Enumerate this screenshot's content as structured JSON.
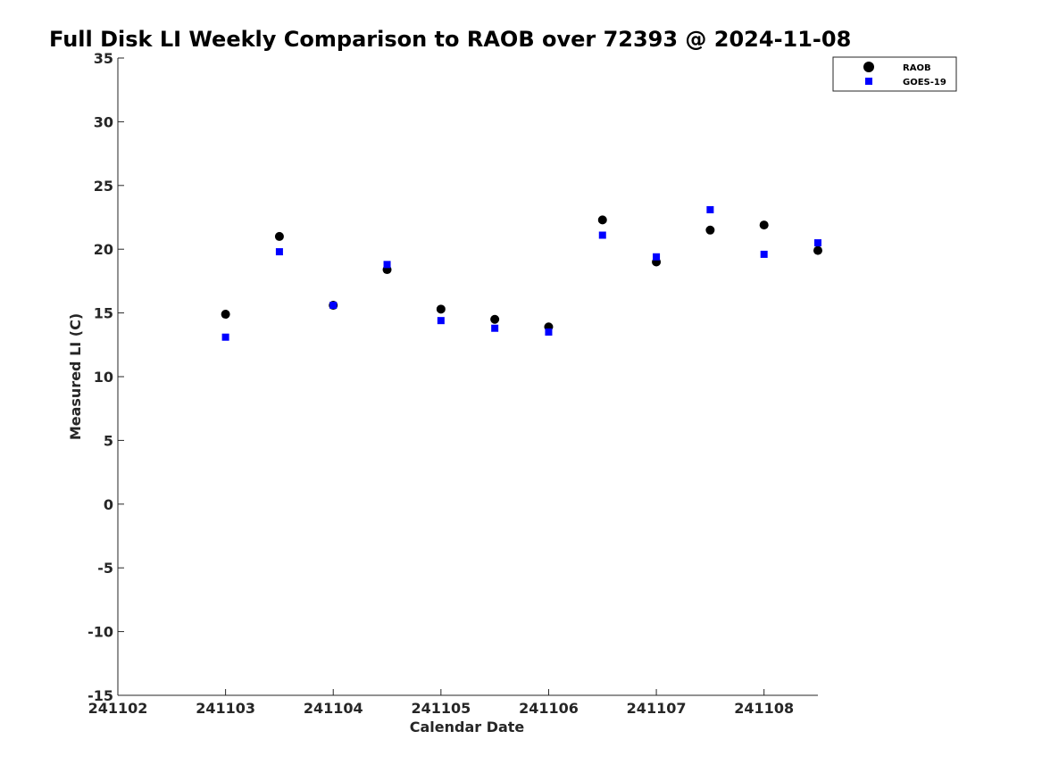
{
  "chart_data": {
    "type": "scatter",
    "title": "Full Disk LI Weekly Comparison to RAOB over 72393 @ 2024-11-08",
    "xlabel": "Calendar Date",
    "ylabel": "Measured LI (C)",
    "xlim": [
      241102,
      241108.5
    ],
    "ylim": [
      -15,
      35
    ],
    "x_ticks": [
      241102,
      241103,
      241104,
      241105,
      241106,
      241107,
      241108
    ],
    "x_tick_labels": [
      "241102",
      "241103",
      "241104",
      "241105",
      "241106",
      "241107",
      "241108"
    ],
    "y_ticks": [
      -15,
      -10,
      -5,
      0,
      5,
      10,
      15,
      20,
      25,
      30,
      35
    ],
    "y_tick_labels": [
      "-15",
      "-10",
      "-5",
      "0",
      "5",
      "10",
      "15",
      "20",
      "25",
      "30",
      "35"
    ],
    "grid": false,
    "legend_position": "top-right",
    "series": [
      {
        "name": "RAOB",
        "marker": "circle",
        "color": "#000000",
        "x": [
          241103,
          241103.5,
          241104,
          241104.5,
          241105,
          241105.5,
          241106,
          241106.5,
          241107,
          241107.5,
          241108,
          241108.5
        ],
        "y": [
          14.9,
          21.0,
          15.6,
          18.4,
          15.3,
          14.5,
          13.9,
          22.3,
          19.0,
          21.5,
          21.9,
          19.9
        ]
      },
      {
        "name": "GOES-19",
        "marker": "square",
        "color": "#0000ff",
        "x": [
          241103,
          241103.5,
          241104,
          241104.5,
          241105,
          241105.5,
          241106,
          241106.5,
          241107,
          241107.5,
          241108,
          241108.5
        ],
        "y": [
          13.1,
          19.8,
          15.6,
          18.8,
          14.4,
          13.8,
          13.5,
          21.1,
          19.4,
          23.1,
          19.6,
          20.5
        ]
      }
    ]
  }
}
